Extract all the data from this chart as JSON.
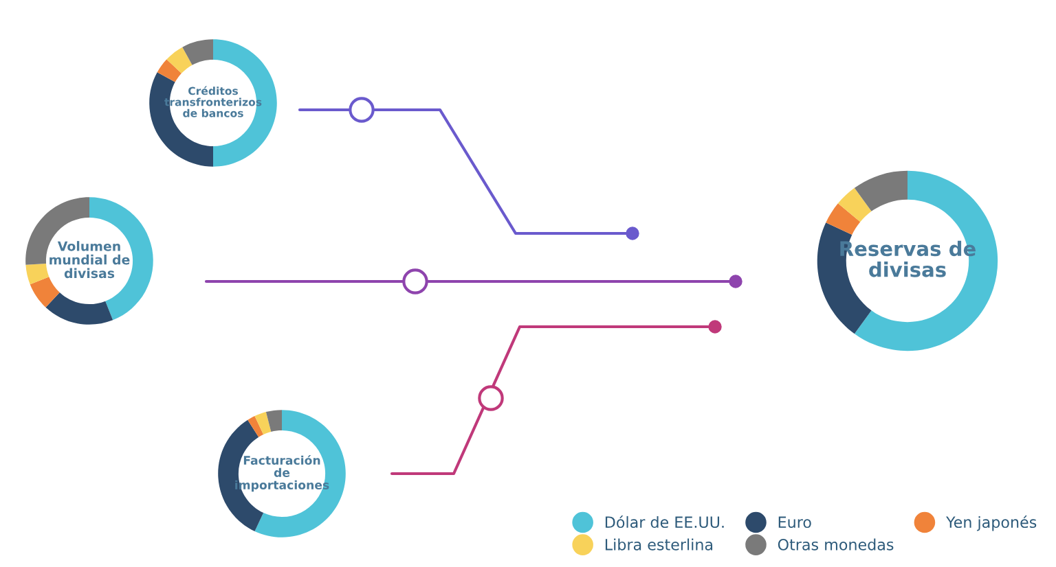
{
  "chart_data": [
    {
      "type": "donut",
      "title": "Créditos\ntransfronterizos\nde bancos",
      "categories": [
        null,
        null,
        null,
        null,
        null
      ],
      "values": [
        50,
        33,
        4,
        5,
        8
      ],
      "colors": [
        "#4fc3d8",
        "#2d4a6b",
        "#f0833a",
        "#f8d25a",
        "#7a7a7a"
      ],
      "legend": false
    },
    {
      "type": "donut",
      "title": "Volumen\nmundial de\ndivisas",
      "categories": [
        null,
        null,
        null,
        null,
        null
      ],
      "values": [
        44,
        18,
        7,
        5,
        26
      ],
      "colors": [
        "#4fc3d8",
        "#2d4a6b",
        "#f0833a",
        "#f8d25a",
        "#7a7a7a"
      ],
      "legend": false
    },
    {
      "type": "donut",
      "title": "Facturación\nde\nimportaciones",
      "categories": [
        null,
        null,
        null,
        null,
        null
      ],
      "values": [
        57,
        34,
        2,
        3,
        4
      ],
      "colors": [
        "#4fc3d8",
        "#2d4a6b",
        "#f0833a",
        "#f8d25a",
        "#7a7a7a"
      ],
      "legend": false
    },
    {
      "type": "donut",
      "title": "Reservas de\ndivisas",
      "categories": [
        "Dólar de EE.UU.",
        "Euro",
        "Yen japonés",
        "Libra esterlina",
        "Otras monedas"
      ],
      "values": [
        60,
        22,
        4,
        4,
        10
      ],
      "colors": [
        "#4fc3d8",
        "#2d4a6b",
        "#f0833a",
        "#f8d25a",
        "#7a7a7a"
      ],
      "legend": "bottom left"
    }
  ]
}
